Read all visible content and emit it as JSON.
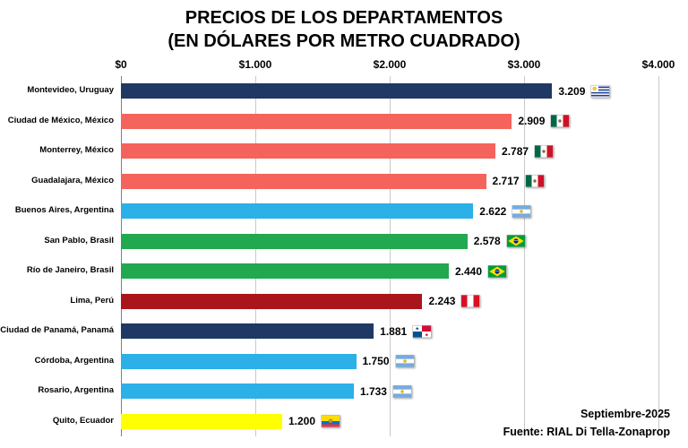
{
  "chart": {
    "title_line1": "PRECIOS DE LOS DEPARTAMENTOS",
    "title_line2": "(EN DÓLARES POR METRO CUADRADO)"
  },
  "footer": {
    "date": "Septiembre-2025",
    "source": "Fuente: RIAL Di Tella-Zonaprop"
  },
  "chart_data": {
    "type": "bar",
    "orientation": "horizontal",
    "title": "PRECIOS DE LOS DEPARTAMENTOS (EN DÓLARES POR METRO CUADRADO)",
    "xlim": [
      0,
      4000
    ],
    "x_ticks": [
      "$0",
      "$1.000",
      "$2.000",
      "$3.000",
      "$4.000"
    ],
    "grid": true,
    "legend": false,
    "rows": [
      {
        "label": "Montevideo, Uruguay",
        "value": 3209,
        "display": "3.209",
        "color": "#1F3864",
        "flag": "uruguay"
      },
      {
        "label": "Ciudad de México, México",
        "value": 2909,
        "display": "2.909",
        "color": "#F4645C",
        "flag": "mexico"
      },
      {
        "label": "Monterrey, México",
        "value": 2787,
        "display": "2.787",
        "color": "#F4645C",
        "flag": "mexico"
      },
      {
        "label": "Guadalajara, México",
        "value": 2717,
        "display": "2.717",
        "color": "#F4645C",
        "flag": "mexico"
      },
      {
        "label": "Buenos Aires, Argentina",
        "value": 2622,
        "display": "2.622",
        "color": "#2BB0E8",
        "flag": "argentina"
      },
      {
        "label": "San Pablo, Brasil",
        "value": 2578,
        "display": "2.578",
        "color": "#22A84F",
        "flag": "brazil"
      },
      {
        "label": "Río de Janeiro, Brasil",
        "value": 2440,
        "display": "2.440",
        "color": "#22A84F",
        "flag": "brazil"
      },
      {
        "label": "Lima, Perú",
        "value": 2243,
        "display": "2.243",
        "color": "#A9151B",
        "flag": "peru"
      },
      {
        "label": "Ciudad de Panamá, Panamá",
        "value": 1881,
        "display": "1.881",
        "color": "#1F3864",
        "flag": "panama"
      },
      {
        "label": "Córdoba, Argentina",
        "value": 1750,
        "display": "1.750",
        "color": "#2BB0E8",
        "flag": "argentina"
      },
      {
        "label": "Rosario, Argentina",
        "value": 1733,
        "display": "1.733",
        "color": "#2BB0E8",
        "flag": "argentina"
      },
      {
        "label": "Quito, Ecuador",
        "value": 1200,
        "display": "1.200",
        "color": "#FFFF00",
        "flag": "ecuador"
      }
    ],
    "colors": {
      "uruguay_panama_navy": "#1F3864",
      "mexico_red": "#F4645C",
      "argentina_blue": "#2BB0E8",
      "brazil_green": "#22A84F",
      "peru_dark_red": "#A9151B",
      "ecuador_yellow": "#FFFF00",
      "gridline": "#C9C9C9"
    }
  }
}
